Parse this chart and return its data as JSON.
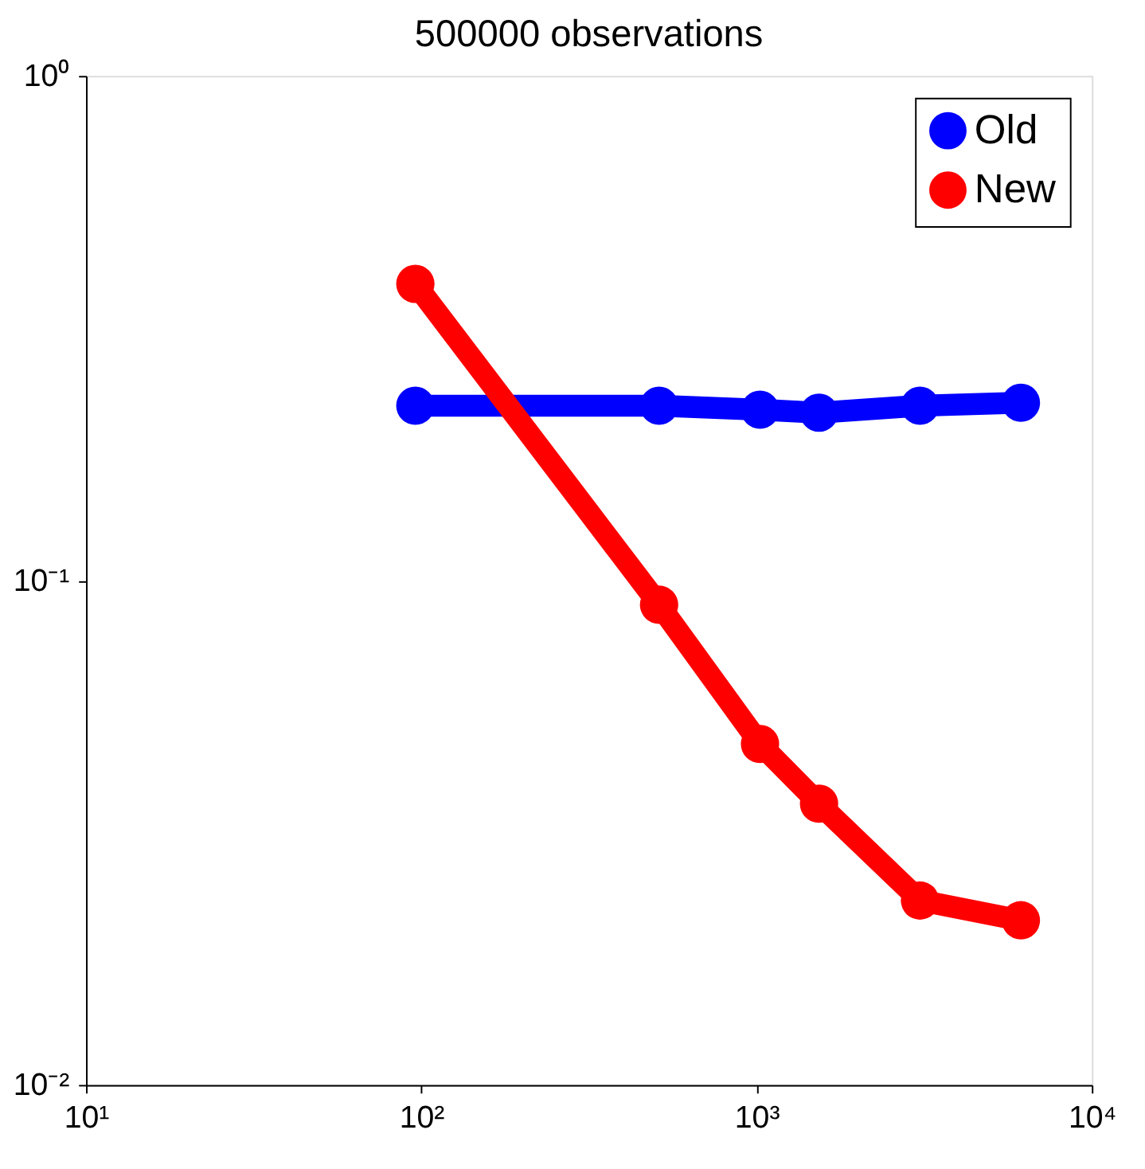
{
  "chart_data": {
    "type": "line",
    "title": "500000 observations",
    "log": "xy",
    "grid": false,
    "legend": "top right",
    "marker": "circle",
    "line_style": "solid",
    "xlim": [
      10,
      10000
    ],
    "xticks": [
      {
        "value": 10,
        "label": "10¹"
      },
      {
        "value": 100,
        "label": "10²"
      },
      {
        "value": 1000,
        "label": "10³"
      },
      {
        "value": 10000,
        "label": "10⁴"
      }
    ],
    "ylim": [
      0.01,
      1
    ],
    "yticks": [
      {
        "value": 0.01,
        "label": "10⁻²"
      },
      {
        "value": 0.1,
        "label": "10⁻¹"
      },
      {
        "value": 1,
        "label": "10⁰"
      }
    ],
    "series": [
      {
        "name": "Old",
        "color": "#0000ff",
        "x": [
          96,
          512,
          1024,
          1536,
          3072,
          6144
        ],
        "values": [
          0.222,
          0.222,
          0.218,
          0.215,
          0.222,
          0.225
        ]
      },
      {
        "name": "New",
        "color": "#ff0000",
        "x": [
          96,
          512,
          1024,
          1536,
          3072,
          6144
        ],
        "values": [
          0.387,
          0.0895,
          0.0474,
          0.0361,
          0.0232,
          0.0212
        ]
      }
    ]
  }
}
